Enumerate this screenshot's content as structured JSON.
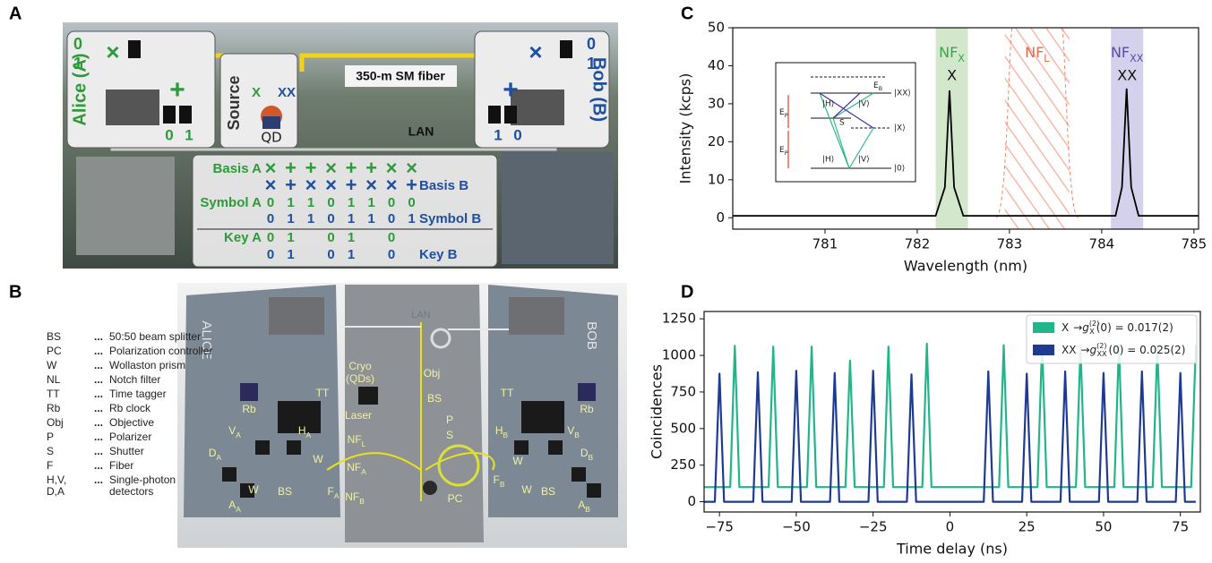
{
  "panel_a": {
    "label": "A",
    "alice": "Alice (A)",
    "bob": "Bob (B)",
    "source": "Source",
    "qd": "QD",
    "x": "X",
    "xx": "XX",
    "fiber": "350-m SM fiber",
    "lan": "LAN",
    "alice_bits": [
      "0",
      "1"
    ],
    "alice_basis": [
      "×",
      "+"
    ],
    "alice_out": [
      "0",
      "1"
    ],
    "bob_bits": [
      "0",
      "1"
    ],
    "bob_basis": [
      "×",
      "+"
    ],
    "bob_out": [
      "1",
      "0"
    ],
    "table": {
      "rows": [
        {
          "label": "Basis A",
          "values": [
            "×",
            "+",
            "+",
            "×",
            "+",
            "+",
            "×",
            "×"
          ]
        },
        {
          "label": "Basis B",
          "values": [
            "×",
            "+",
            "×",
            "×",
            "+",
            "×",
            "×",
            "+"
          ]
        },
        {
          "label": "Symbol A",
          "values": [
            "0",
            "1",
            "1",
            "0",
            "1",
            "1",
            "0",
            "0"
          ]
        },
        {
          "label": "Symbol B",
          "values": [
            "0",
            "1",
            "1",
            "0",
            "1",
            "1",
            "0",
            "1"
          ]
        },
        {
          "label": "Key A",
          "values": [
            "0",
            "1",
            null,
            "0",
            "1",
            null,
            "0",
            null
          ]
        },
        {
          "label": "Key B",
          "values": [
            "0",
            "1",
            null,
            "0",
            "1",
            null,
            "0",
            null
          ]
        }
      ]
    }
  },
  "panel_b": {
    "label": "B",
    "sep": "...",
    "alice": "ALICE",
    "bob": "BOB",
    "lan": "LAN",
    "legend": [
      {
        "abbr": "BS",
        "desc": "50:50 beam splitter"
      },
      {
        "abbr": "PC",
        "desc": "Polarization controller"
      },
      {
        "abbr": "W",
        "desc": "Wollaston prism"
      },
      {
        "abbr": "NL",
        "desc": "Notch filter"
      },
      {
        "abbr": "TT",
        "desc": "Time tagger"
      },
      {
        "abbr": "Rb",
        "desc": "Rb clock"
      },
      {
        "abbr": "Obj",
        "desc": "Objective"
      },
      {
        "abbr": "P",
        "desc": "Polarizer"
      },
      {
        "abbr": "S",
        "desc": "Shutter"
      },
      {
        "abbr": "F",
        "desc": "Fiber"
      },
      {
        "abbr": "H,V,",
        "abbr2": "D,A",
        "desc": "Single-photon",
        "desc2": "detectors"
      }
    ],
    "labels": [
      {
        "t": "TT"
      },
      {
        "t": "Rb"
      },
      {
        "t": "V",
        "sub": "A"
      },
      {
        "t": "H",
        "sub": "A"
      },
      {
        "t": "W"
      },
      {
        "t": "D",
        "sub": "A"
      },
      {
        "t": "A",
        "sub": "A"
      },
      {
        "t": "W"
      },
      {
        "t": "BS"
      },
      {
        "t": "F",
        "sub": "A"
      },
      {
        "t": "Cryo"
      },
      {
        "t": "(QDs)"
      },
      {
        "t": "Obj"
      },
      {
        "t": "BS"
      },
      {
        "t": "Laser"
      },
      {
        "t": "P"
      },
      {
        "t": "S"
      },
      {
        "t": "NF",
        "sub": "L"
      },
      {
        "t": "NF",
        "sub": "A"
      },
      {
        "t": "NF",
        "sub": "B"
      },
      {
        "t": "PC"
      },
      {
        "t": "TT"
      },
      {
        "t": "Rb"
      },
      {
        "t": "H",
        "sub": "B"
      },
      {
        "t": "V",
        "sub": "B"
      },
      {
        "t": "W"
      },
      {
        "t": "D",
        "sub": "B"
      },
      {
        "t": "A",
        "sub": "B"
      },
      {
        "t": "W"
      },
      {
        "t": "BS"
      },
      {
        "t": "F",
        "sub": "B"
      }
    ]
  },
  "chart_data": [
    {
      "type": "line",
      "panel_label": "C",
      "x_label": "Wavelength (nm)",
      "y_label": "Intensity (kcps)",
      "xlim": [
        780,
        785.05
      ],
      "ylim": [
        -3,
        50
      ],
      "xticks": [
        781,
        782,
        783,
        784,
        785
      ],
      "yticks": [
        0,
        10,
        20,
        30,
        40,
        50
      ],
      "color": "#000000",
      "x": [
        780,
        782.2,
        782.3,
        782.35,
        782.4,
        782.5,
        784.15,
        784.22,
        784.27,
        784.32,
        784.4,
        785.05
      ],
      "values": [
        0.5,
        0.5,
        8,
        33.5,
        8,
        0.5,
        0.5,
        8,
        34,
        8,
        0.5,
        0.5
      ],
      "bands": [
        {
          "name": {
            "t": "NF",
            "sub": "X"
          },
          "peak": "X",
          "range": [
            782.2,
            782.55
          ],
          "color": "#d2e7cc",
          "label_color": "#3aa54a"
        },
        {
          "name": {
            "t": "NF",
            "sub": "L"
          },
          "range": [
            782.95,
            783.65
          ],
          "color": "#f08a6a",
          "label_color": "#e8684a"
        },
        {
          "name": {
            "t": "NF",
            "sub": "XX"
          },
          "peak": "XX",
          "range": [
            784.1,
            784.45
          ],
          "color": "#d4d1ed",
          "label_color": "#5a4bab"
        }
      ],
      "inset": {
        "eb": {
          "t": "E",
          "sub": "B"
        },
        "ep": {
          "t": "E",
          "sub": "P"
        },
        "xx": "|XX⟩",
        "x": "|X⟩",
        "g": "|0⟩",
        "s": "S",
        "h": "|H⟩",
        "v": "|V⟩"
      }
    },
    {
      "type": "line",
      "panel_label": "D",
      "x_label": "Time delay (ns)",
      "y_label": "Coincidences",
      "xlim": [
        -80,
        81.5
      ],
      "ylim": [
        -70,
        1300
      ],
      "xticks": [
        {
          "value": -75,
          "label": "−75"
        },
        {
          "value": -50,
          "label": "−50"
        },
        {
          "value": -25,
          "label": "−25"
        },
        0,
        25,
        50,
        75
      ],
      "yticks": [
        0,
        250,
        500,
        750,
        1000,
        1250
      ],
      "series": [
        {
          "name": "X",
          "color": "#22b58a",
          "legend": {
            "arrow": "→",
            "g": "g",
            "sup": "(2)",
            "sub": "X",
            "rest": "(0) = 0.017(2)"
          },
          "x": [
            -80,
            -71.5,
            -70,
            -68.5,
            -59,
            -57.5,
            -56,
            -46.5,
            -45,
            -43.5,
            -34,
            -32.5,
            -31,
            -21.5,
            -20,
            -18.5,
            -9,
            -7.5,
            -6,
            16,
            17.5,
            19,
            28.5,
            30,
            31.5,
            41,
            42.5,
            44,
            53.5,
            55,
            56.5,
            66,
            67.5,
            69,
            78.5,
            80
          ],
          "values": [
            100,
            100,
            1065,
            100,
            100,
            1060,
            100,
            100,
            1060,
            100,
            100,
            965,
            100,
            100,
            1060,
            100,
            100,
            1080,
            100,
            100,
            1070,
            100,
            100,
            1080,
            100,
            100,
            1060,
            100,
            100,
            1075,
            100,
            100,
            1065,
            100,
            100,
            1070
          ]
        },
        {
          "name": "XX",
          "color": "#1f3a93",
          "legend": {
            "arrow": "→",
            "g": "g",
            "sup": "(2)",
            "sub": "XX",
            "rest": "(0) = 0.025(2)"
          },
          "x": [
            -80,
            -76.5,
            -75,
            -73.5,
            -64,
            -62.5,
            -61,
            -51.5,
            -50,
            -48.5,
            -39,
            -37.5,
            -36,
            -26.5,
            -25,
            -23.5,
            -14,
            -12.5,
            -11,
            11,
            12.5,
            14,
            23.5,
            25,
            26.5,
            36,
            37.5,
            39,
            48.5,
            50,
            51.5,
            61,
            62.5,
            64,
            73.5,
            75,
            76.5,
            80
          ],
          "values": [
            0,
            0,
            875,
            0,
            0,
            885,
            0,
            0,
            895,
            0,
            0,
            880,
            0,
            0,
            895,
            0,
            0,
            870,
            0,
            0,
            890,
            0,
            0,
            875,
            0,
            0,
            890,
            0,
            0,
            880,
            0,
            0,
            890,
            0,
            0,
            880,
            0,
            0
          ]
        }
      ]
    }
  ]
}
